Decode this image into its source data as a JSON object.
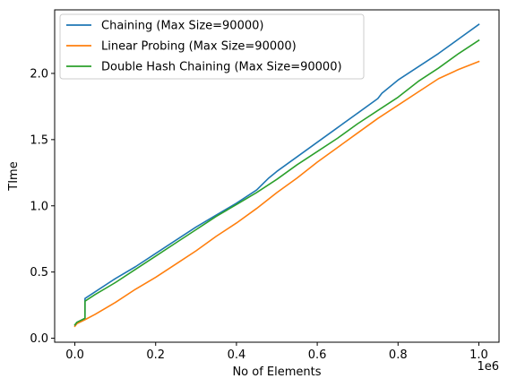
{
  "chart_data": {
    "type": "line",
    "title": "",
    "xlabel": "No of Elements",
    "ylabel": "TIme",
    "x_offset_label": "1e6",
    "xlim": [
      -50000,
      1050000
    ],
    "ylim": [
      -0.03,
      2.48
    ],
    "x_tick_values": [
      0,
      0.2,
      0.4,
      0.6,
      0.8,
      1.0
    ],
    "x_tick_labels": [
      "0.0",
      "0.2",
      "0.4",
      "0.6",
      "0.8",
      "1.0"
    ],
    "y_tick_values": [
      0.0,
      0.5,
      1.0,
      1.5,
      2.0
    ],
    "y_tick_labels": [
      "0.0",
      "0.5",
      "1.0",
      "1.5",
      "2.0"
    ],
    "grid": false,
    "legend_position": "top-left",
    "series": [
      {
        "name": "Chaining (Max Size=90000)",
        "color": "#1f77b4",
        "x": [
          0,
          5000,
          25000,
          25100,
          50000,
          100000,
          150000,
          200000,
          250000,
          300000,
          350000,
          400000,
          450000,
          480000,
          500000,
          550000,
          600000,
          650000,
          700000,
          750000,
          760000,
          800000,
          850000,
          900000,
          950000,
          1000000
        ],
        "y": [
          0.1,
          0.12,
          0.15,
          0.3,
          0.35,
          0.45,
          0.54,
          0.64,
          0.74,
          0.84,
          0.93,
          1.02,
          1.12,
          1.21,
          1.26,
          1.37,
          1.48,
          1.59,
          1.7,
          1.81,
          1.85,
          1.95,
          2.05,
          2.15,
          2.26,
          2.37
        ]
      },
      {
        "name": "Linear Probing (Max Size=90000)",
        "color": "#ff7f0e",
        "x": [
          0,
          5000,
          25000,
          50000,
          100000,
          150000,
          200000,
          250000,
          300000,
          350000,
          400000,
          450000,
          500000,
          550000,
          600000,
          650000,
          700000,
          750000,
          800000,
          850000,
          900000,
          950000,
          1000000
        ],
        "y": [
          0.09,
          0.11,
          0.14,
          0.18,
          0.27,
          0.37,
          0.46,
          0.56,
          0.66,
          0.77,
          0.87,
          0.98,
          1.1,
          1.21,
          1.33,
          1.44,
          1.55,
          1.66,
          1.76,
          1.86,
          1.96,
          2.03,
          2.09
        ]
      },
      {
        "name": "Double Hash Chaining (Max Size=90000)",
        "color": "#2ca02c",
        "x": [
          0,
          5000,
          25000,
          25100,
          50000,
          100000,
          150000,
          200000,
          250000,
          300000,
          350000,
          400000,
          450000,
          500000,
          550000,
          600000,
          650000,
          700000,
          750000,
          800000,
          850000,
          900000,
          950000,
          1000000
        ],
        "y": [
          0.1,
          0.12,
          0.15,
          0.28,
          0.33,
          0.42,
          0.52,
          0.62,
          0.72,
          0.82,
          0.92,
          1.01,
          1.1,
          1.2,
          1.31,
          1.41,
          1.51,
          1.62,
          1.72,
          1.82,
          1.94,
          2.04,
          2.15,
          2.25
        ]
      }
    ]
  }
}
